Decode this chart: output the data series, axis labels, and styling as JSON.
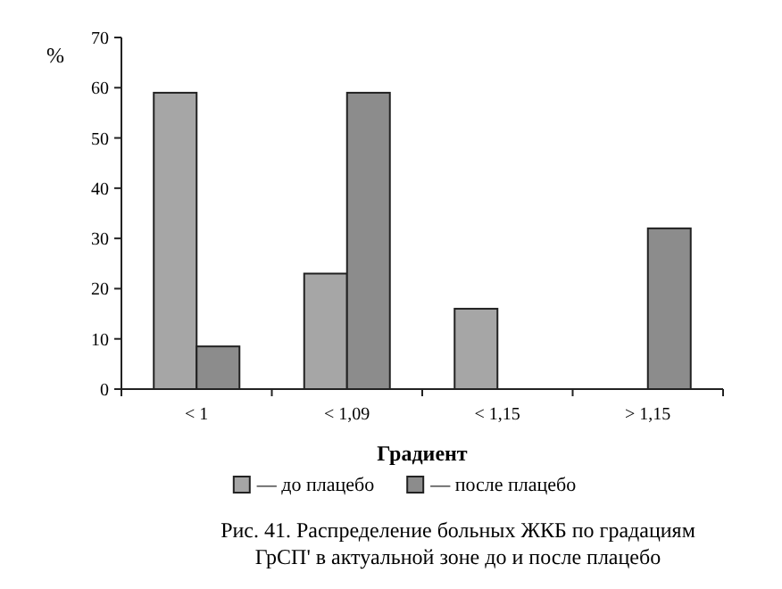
{
  "chart_data": {
    "type": "bar",
    "title": "Рис. 41. Распределение больных ЖКБ по градациям ГрСП' в актуальной зоне до и после плацебо",
    "xlabel": "Градиент",
    "ylabel": "%",
    "categories": [
      "< 1",
      "< 1,09",
      "< 1,15",
      "> 1,15"
    ],
    "series": [
      {
        "name": "— до плацебо",
        "color": "#a6a6a6",
        "values": [
          59,
          23,
          16,
          null
        ]
      },
      {
        "name": "— после плацебо",
        "color": "#8c8c8c",
        "values": [
          8.5,
          59,
          null,
          32
        ]
      }
    ],
    "ylim": [
      0,
      70
    ],
    "yticks": [
      0,
      10,
      20,
      30,
      40,
      50,
      60,
      70
    ],
    "grid": false,
    "legend": "bottom"
  }
}
